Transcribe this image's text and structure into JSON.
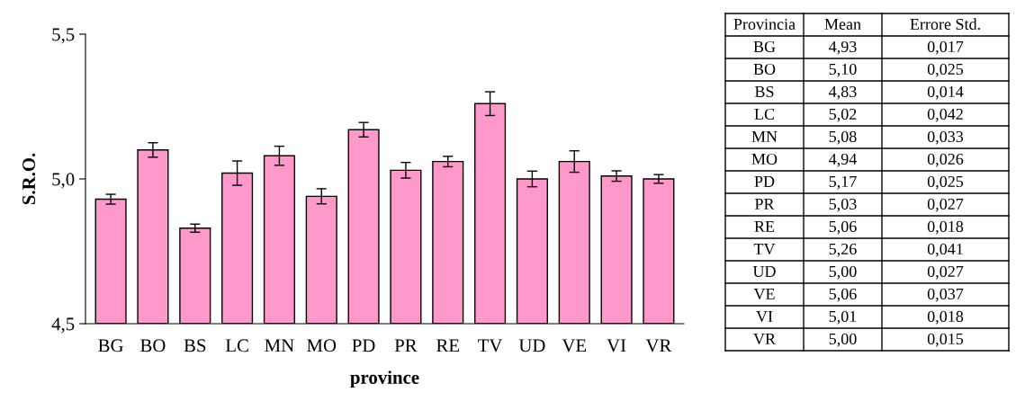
{
  "chart_data": {
    "type": "bar",
    "xlabel": "province",
    "ylabel": "S.R.O.",
    "categories": [
      "BG",
      "BO",
      "BS",
      "LC",
      "MN",
      "MO",
      "PD",
      "PR",
      "RE",
      "TV",
      "UD",
      "VE",
      "VI",
      "VR"
    ],
    "values": [
      4.93,
      5.1,
      4.83,
      5.02,
      5.08,
      4.94,
      5.17,
      5.03,
      5.06,
      5.26,
      5.0,
      5.06,
      5.01,
      5.0
    ],
    "errors": [
      0.017,
      0.025,
      0.014,
      0.042,
      0.033,
      0.026,
      0.025,
      0.027,
      0.018,
      0.041,
      0.027,
      0.037,
      0.018,
      0.015
    ],
    "color": "#ff99cc",
    "ylim": [
      4.5,
      5.5
    ],
    "yticks": [
      {
        "value": 4.5,
        "label": "4,5"
      },
      {
        "value": 5.0,
        "label": "5,0"
      },
      {
        "value": 5.5,
        "label": "5,5"
      }
    ],
    "annotations": [
      "Provincia",
      "Mean",
      "Errore Std.",
      "BG",
      "4,93",
      "0,017",
      "BO",
      "5,10",
      "0,025",
      "BS",
      "4,83",
      "0,014",
      "LC",
      "5,02",
      "0,042",
      "MN",
      "5,08",
      "0,033",
      "MO",
      "4,94",
      "0,026",
      "PD",
      "5,17",
      "0,025",
      "PR",
      "5,03",
      "0,027",
      "RE",
      "5,06",
      "0,018",
      "TV",
      "5,26",
      "0,041",
      "UD",
      "5,00",
      "0,027",
      "VE",
      "5,06",
      "0,037",
      "VI",
      "5,01",
      "0,018",
      "VR",
      "5,00",
      "0,015"
    ],
    "grid": false,
    "legend": false
  }
}
